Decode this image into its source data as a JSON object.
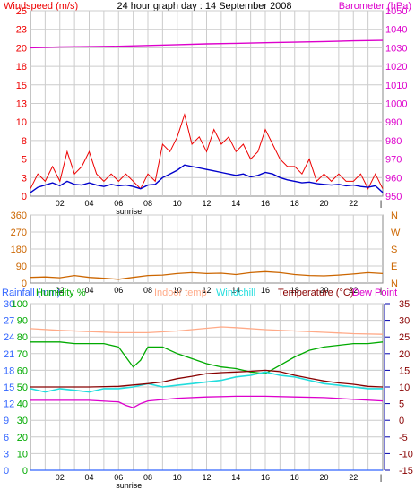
{
  "header": {
    "left_title": "Windspeed (m/s)",
    "center_title": "24 hour graph day : 14 September 2008",
    "right_title": "Barometer (hPa)"
  },
  "colors": {
    "wind": "#ee0000",
    "gust": "#ee0000",
    "avg_wind": "#0000cc",
    "barometer": "#dd00cc",
    "direction": "#cc6600",
    "rainfall": "#3366ff",
    "humidity": "#00aa00",
    "indoor": "#ffaa88",
    "windchill": "#22dddd",
    "temperature": "#880000",
    "dewpoint": "#dd00cc",
    "grid": "#cccccc",
    "frame": "#888888",
    "axis_text": "#000000"
  },
  "chart_data": [
    {
      "id": "wind_baro",
      "type": "line",
      "x_ticks": [
        "02",
        "04",
        "06",
        "08",
        "10",
        "12",
        "14",
        "16",
        "18",
        "20",
        "22"
      ],
      "x_end_tick": "|",
      "x_marker": "sunrise",
      "x_marker_hour": 6.7,
      "xlim": [
        0,
        24
      ],
      "left_axis": {
        "ylim": [
          0,
          25
        ],
        "ticks": [
          "0",
          "3",
          "5",
          "8",
          "10",
          "13",
          "15",
          "18",
          "20",
          "23",
          "25"
        ]
      },
      "right_axis": {
        "ylim": [
          950,
          1045
        ],
        "ticks": [
          "950",
          "960",
          "970",
          "980",
          "990",
          "1000",
          "1010",
          "1020",
          "1030",
          "1040",
          "1050"
        ]
      },
      "series": [
        {
          "key": "gust",
          "axis": "left",
          "x": [
            0,
            0.5,
            1,
            1.5,
            2,
            2.5,
            3,
            3.5,
            4,
            4.5,
            5,
            5.5,
            6,
            6.5,
            7,
            7.5,
            8,
            8.5,
            9,
            9.5,
            10,
            10.5,
            11,
            11.5,
            12,
            12.5,
            13,
            13.5,
            14,
            14.5,
            15,
            15.5,
            16,
            16.5,
            17,
            17.5,
            18,
            18.5,
            19,
            19.5,
            20,
            20.5,
            21,
            21.5,
            22,
            22.5,
            23,
            23.5,
            24
          ],
          "values": [
            1,
            3,
            2,
            4,
            2,
            6,
            3,
            4,
            6,
            3,
            2,
            3,
            2,
            3,
            2,
            1,
            3,
            2,
            7,
            6,
            8,
            11,
            7,
            8,
            6,
            9,
            7,
            8,
            6,
            7,
            5,
            6,
            9,
            7,
            5,
            4,
            4,
            3,
            5,
            2,
            3,
            2,
            3,
            2,
            2,
            3,
            1,
            3,
            1
          ]
        },
        {
          "key": "avg_wind",
          "axis": "left",
          "x": [
            0,
            0.5,
            1,
            1.5,
            2,
            2.5,
            3,
            3.5,
            4,
            4.5,
            5,
            5.5,
            6,
            6.5,
            7,
            7.5,
            8,
            8.5,
            9,
            9.5,
            10,
            10.5,
            11,
            11.5,
            12,
            12.5,
            13,
            13.5,
            14,
            14.5,
            15,
            15.5,
            16,
            16.5,
            17,
            17.5,
            18,
            18.5,
            19,
            19.5,
            20,
            20.5,
            21,
            21.5,
            22,
            22.5,
            23,
            23.5,
            24
          ],
          "values": [
            0.5,
            1.2,
            1.5,
            1.8,
            1.4,
            2.0,
            1.6,
            1.5,
            1.8,
            1.5,
            1.3,
            1.6,
            1.4,
            1.5,
            1.3,
            1.0,
            1.5,
            1.6,
            2.5,
            3.0,
            3.5,
            4.2,
            4.0,
            3.8,
            3.6,
            3.4,
            3.2,
            3.0,
            2.8,
            3.0,
            2.6,
            2.8,
            3.2,
            3.0,
            2.5,
            2.2,
            2.0,
            1.8,
            1.9,
            1.7,
            1.6,
            1.5,
            1.6,
            1.4,
            1.5,
            1.3,
            1.2,
            1.4,
            0.5
          ]
        },
        {
          "key": "barometer",
          "axis": "right",
          "x": [
            0,
            2,
            4,
            6,
            8,
            10,
            12,
            14,
            16,
            18,
            20,
            22,
            24
          ],
          "values": [
            1026,
            1026.4,
            1026.6,
            1026.8,
            1027.2,
            1027.6,
            1028.0,
            1028.3,
            1028.6,
            1028.9,
            1029.2,
            1029.6,
            1029.8
          ]
        }
      ]
    },
    {
      "id": "direction",
      "type": "line",
      "x_ticks": [
        "02",
        "04",
        "06",
        "08",
        "10",
        "12",
        "14",
        "16",
        "18",
        "20",
        "22"
      ],
      "x_end_tick": "|",
      "xlim": [
        0,
        24
      ],
      "left_axis": {
        "ylim": [
          0,
          360
        ],
        "ticks": [
          "0",
          "90",
          "180",
          "270",
          "360"
        ]
      },
      "right_axis": {
        "ticks": [
          "N",
          "E",
          "S",
          "W",
          "N"
        ]
      },
      "series": [
        {
          "key": "direction",
          "axis": "left",
          "x": [
            0,
            1,
            2,
            3,
            4,
            5,
            6,
            7,
            8,
            9,
            10,
            11,
            12,
            13,
            14,
            15,
            16,
            17,
            18,
            19,
            20,
            21,
            22,
            23,
            24
          ],
          "values": [
            30,
            32,
            28,
            40,
            30,
            25,
            20,
            30,
            40,
            42,
            50,
            55,
            50,
            52,
            45,
            55,
            60,
            55,
            45,
            40,
            38,
            42,
            48,
            55,
            50
          ]
        }
      ]
    },
    {
      "id": "temp_humidity",
      "type": "line",
      "x_ticks": [
        "02",
        "04",
        "06",
        "08",
        "10",
        "12",
        "14",
        "16",
        "18",
        "20",
        "22"
      ],
      "x_end_tick": "|",
      "x_marker": "sunrise",
      "x_marker_hour": 6.7,
      "xlim": [
        0,
        24
      ],
      "header_labels": [
        {
          "key": "rainfall",
          "text": "Rainfall (mm)"
        },
        {
          "key": "humidity",
          "text": "Humidity %"
        },
        {
          "key": "indoor",
          "text": "Indoor temp"
        },
        {
          "key": "windchill",
          "text": "Windchill"
        },
        {
          "key": "temperature",
          "text": "Temperature (°C)"
        },
        {
          "key": "dewpoint",
          "text": "Dew Point"
        }
      ],
      "axes": {
        "rainfall": {
          "ylim": [
            0,
            30
          ],
          "ticks": [
            "0",
            "3",
            "6",
            "9",
            "12",
            "15",
            "18",
            "21",
            "24",
            "27",
            "30"
          ]
        },
        "humidity": {
          "ylim": [
            0,
            100
          ],
          "ticks": [
            "0",
            "10",
            "20",
            "30",
            "40",
            "50",
            "60",
            "70",
            "80",
            "90",
            "100"
          ]
        },
        "temperature": {
          "ylim": [
            -15,
            35
          ],
          "ticks": [
            "-15",
            "-10",
            "-5",
            "0",
            "5",
            "10",
            "15",
            "20",
            "25",
            "30",
            "35"
          ]
        }
      },
      "series": [
        {
          "key": "rainfall",
          "axis": "rainfall",
          "x": [
            0,
            24
          ],
          "values": [
            0,
            0
          ]
        },
        {
          "key": "humidity",
          "axis": "humidity",
          "x": [
            0,
            1,
            2,
            3,
            4,
            5,
            6,
            6.5,
            7,
            7.5,
            8,
            9,
            10,
            11,
            12,
            13,
            14,
            15,
            16,
            17,
            18,
            19,
            20,
            21,
            22,
            23,
            24
          ],
          "values": [
            77,
            77,
            77,
            76,
            76,
            76,
            74,
            68,
            62,
            66,
            74,
            74,
            70,
            67,
            64,
            62,
            61,
            59,
            58,
            63,
            68,
            72,
            74,
            75,
            76,
            76,
            77
          ]
        },
        {
          "key": "indoor",
          "axis": "temperature",
          "x": [
            0,
            2,
            4,
            6,
            8,
            10,
            12,
            13,
            14,
            16,
            18,
            20,
            22,
            24
          ],
          "values": [
            27.5,
            27.0,
            26.6,
            26.3,
            26.3,
            26.8,
            27.6,
            28.0,
            27.8,
            27.2,
            26.8,
            26.4,
            26.0,
            25.8
          ]
        },
        {
          "key": "windchill",
          "axis": "temperature",
          "x": [
            0,
            1,
            2,
            3,
            4,
            5,
            6,
            7,
            8,
            9,
            10,
            11,
            12,
            13,
            14,
            15,
            16,
            17,
            18,
            19,
            20,
            21,
            22,
            23,
            24
          ],
          "values": [
            9.5,
            8.5,
            9.5,
            9.0,
            8.5,
            9.5,
            9.5,
            10,
            11,
            10,
            10.5,
            11,
            11.5,
            12,
            13,
            13.5,
            14.5,
            13.5,
            13,
            12,
            11,
            10.5,
            10,
            9.5,
            9.5
          ]
        },
        {
          "key": "temperature",
          "axis": "temperature",
          "x": [
            0,
            2,
            4,
            6,
            8,
            9,
            10,
            11,
            12,
            13,
            14,
            15,
            16,
            17,
            18,
            19,
            20,
            21,
            22,
            23,
            24
          ],
          "values": [
            10.0,
            10.0,
            10.0,
            10.2,
            11.0,
            11.5,
            12.5,
            13.2,
            14.0,
            14.3,
            14.5,
            14.7,
            15.0,
            14.6,
            13.5,
            12.6,
            11.8,
            11.2,
            10.8,
            10.2,
            10.0
          ]
        },
        {
          "key": "dewpoint",
          "axis": "temperature",
          "x": [
            0,
            2,
            4,
            6,
            6.5,
            7,
            7.5,
            8,
            10,
            12,
            14,
            16,
            18,
            20,
            22,
            24
          ],
          "values": [
            6.0,
            6.0,
            6.0,
            5.5,
            4.5,
            3.8,
            5.0,
            5.8,
            6.6,
            7.0,
            7.2,
            7.2,
            7.0,
            6.8,
            6.3,
            5.8
          ]
        }
      ]
    }
  ]
}
